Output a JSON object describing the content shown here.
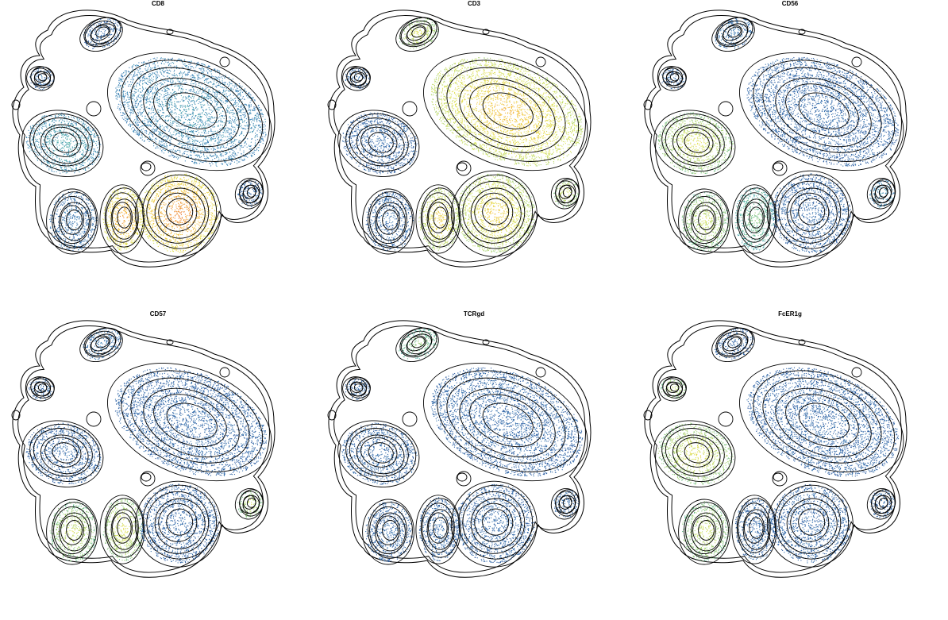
{
  "figure": {
    "colormap": [
      "#2c5aa0",
      "#3a84b8",
      "#4fb3a5",
      "#9fd07a",
      "#e0e454",
      "#f3c43b",
      "#ef8b2d",
      "#e4572a"
    ],
    "contour_color": "#000000"
  },
  "chart_data": [
    {
      "type": "scatter",
      "title": "CD8",
      "xlabel": "",
      "ylabel": "",
      "grid": false,
      "clusters": [
        {
          "id": "top_left_pair",
          "level": 0.05
        },
        {
          "id": "upper_left_small",
          "level": 0.05
        },
        {
          "id": "large_upper_right",
          "level": 0.2
        },
        {
          "id": "left_big",
          "level": 0.25
        },
        {
          "id": "lower_left",
          "level": 0.1
        },
        {
          "id": "lower_mid_left",
          "level": 0.85
        },
        {
          "id": "lower_mid_right",
          "level": 0.9
        },
        {
          "id": "right_small",
          "level": 0.05
        }
      ]
    },
    {
      "type": "scatter",
      "title": "CD3",
      "xlabel": "",
      "ylabel": "",
      "grid": false,
      "clusters": [
        {
          "id": "top_left_pair",
          "level": 0.6
        },
        {
          "id": "upper_left_small",
          "level": 0.05
        },
        {
          "id": "large_upper_right",
          "level": 0.75
        },
        {
          "id": "left_big",
          "level": 0.05
        },
        {
          "id": "lower_left",
          "level": 0.05
        },
        {
          "id": "lower_mid_left",
          "level": 0.7
        },
        {
          "id": "lower_mid_right",
          "level": 0.7
        },
        {
          "id": "right_small",
          "level": 0.6
        }
      ]
    },
    {
      "type": "scatter",
      "title": "CD56",
      "xlabel": "",
      "ylabel": "",
      "grid": false,
      "clusters": [
        {
          "id": "top_left_pair",
          "level": 0.1
        },
        {
          "id": "upper_left_small",
          "level": 0.05
        },
        {
          "id": "large_upper_right",
          "level": 0.05
        },
        {
          "id": "left_big",
          "level": 0.6
        },
        {
          "id": "lower_left",
          "level": 0.55
        },
        {
          "id": "lower_mid_left",
          "level": 0.4
        },
        {
          "id": "lower_mid_right",
          "level": 0.05
        },
        {
          "id": "right_small",
          "level": 0.2
        }
      ]
    },
    {
      "type": "scatter",
      "title": "CD57",
      "xlabel": "",
      "ylabel": "",
      "grid": false,
      "clusters": [
        {
          "id": "top_left_pair",
          "level": 0.1
        },
        {
          "id": "upper_left_small",
          "level": 0.05
        },
        {
          "id": "large_upper_right",
          "level": 0.05
        },
        {
          "id": "left_big",
          "level": 0.05
        },
        {
          "id": "lower_left",
          "level": 0.55
        },
        {
          "id": "lower_mid_left",
          "level": 0.6
        },
        {
          "id": "lower_mid_right",
          "level": 0.05
        },
        {
          "id": "right_small",
          "level": 0.55
        }
      ]
    },
    {
      "type": "scatter",
      "title": "TCRgd",
      "xlabel": "",
      "ylabel": "",
      "grid": false,
      "clusters": [
        {
          "id": "top_left_pair",
          "level": 0.45
        },
        {
          "id": "upper_left_small",
          "level": 0.05
        },
        {
          "id": "large_upper_right",
          "level": 0.05
        },
        {
          "id": "left_big",
          "level": 0.05
        },
        {
          "id": "lower_left",
          "level": 0.05
        },
        {
          "id": "lower_mid_left",
          "level": 0.05
        },
        {
          "id": "lower_mid_right",
          "level": 0.05
        },
        {
          "id": "right_small",
          "level": 0.05
        }
      ]
    },
    {
      "type": "scatter",
      "title": "FcER1g",
      "xlabel": "",
      "ylabel": "",
      "grid": false,
      "clusters": [
        {
          "id": "top_left_pair",
          "level": 0.05
        },
        {
          "id": "upper_left_small",
          "level": 0.55
        },
        {
          "id": "large_upper_right",
          "level": 0.05
        },
        {
          "id": "left_big",
          "level": 0.6
        },
        {
          "id": "lower_left",
          "level": 0.55
        },
        {
          "id": "lower_mid_left",
          "level": 0.05
        },
        {
          "id": "lower_mid_right",
          "level": 0.05
        },
        {
          "id": "right_small",
          "level": 0.05
        }
      ]
    }
  ]
}
